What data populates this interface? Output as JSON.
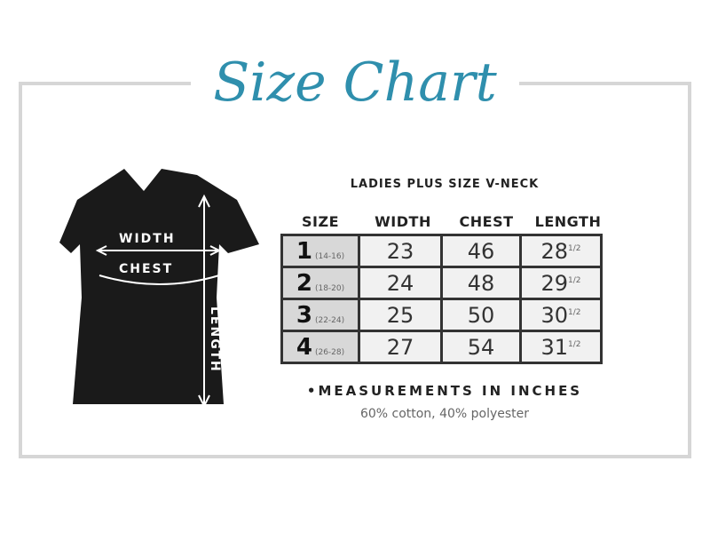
{
  "title": "Size Chart",
  "subtitle": "LADIES PLUS SIZE V-NECK",
  "shirt_labels": {
    "width": "WIDTH",
    "chest": "CHEST",
    "length": "LENGTH"
  },
  "columns": [
    "SIZE",
    "WIDTH",
    "CHEST",
    "LENGTH"
  ],
  "rows": [
    {
      "size": "1",
      "range": "(14-16)",
      "width": "23",
      "chest": "46",
      "length": "28",
      "fraction": "1/2"
    },
    {
      "size": "2",
      "range": "(18-20)",
      "width": "24",
      "chest": "48",
      "length": "29",
      "fraction": "1/2"
    },
    {
      "size": "3",
      "range": "(22-24)",
      "width": "25",
      "chest": "50",
      "length": "30",
      "fraction": "1/2"
    },
    {
      "size": "4",
      "range": "(26-28)",
      "width": "27",
      "chest": "54",
      "length": "31",
      "fraction": "1/2"
    }
  ],
  "note": "•MEASUREMENTS IN INCHES",
  "fabric": "60% cotton, 40% polyester",
  "colors": {
    "title": "#2f8fad",
    "frame": "#d6d6d6",
    "shirt": "#1a1a1a"
  }
}
